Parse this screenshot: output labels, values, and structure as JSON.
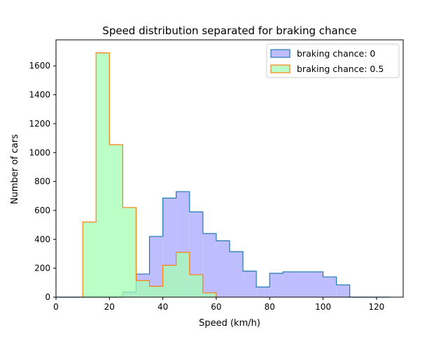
{
  "chart_data": {
    "type": "histogram",
    "title": "Speed distribution separated for braking chance",
    "xlabel": "Speed (km/h)",
    "ylabel": "Number of cars",
    "xlim": [
      0,
      130
    ],
    "ylim": [
      0,
      1780
    ],
    "x_ticks": [
      0,
      20,
      40,
      60,
      80,
      100,
      120
    ],
    "y_ticks": [
      0,
      200,
      400,
      600,
      800,
      1000,
      1200,
      1400,
      1600
    ],
    "legend_position": "top-right",
    "grid": false,
    "series": [
      {
        "name": "braking chance: 0",
        "fill_color": "#b3b3ff",
        "fill_opacity": 0.85,
        "edge_color": "#1f77b4",
        "bins": [
          {
            "x0": 0,
            "x1": 5,
            "value": 0
          },
          {
            "x0": 5,
            "x1": 10,
            "value": 0
          },
          {
            "x0": 10,
            "x1": 15,
            "value": 0
          },
          {
            "x0": 15,
            "x1": 20,
            "value": 0
          },
          {
            "x0": 20,
            "x1": 25,
            "value": 0
          },
          {
            "x0": 25,
            "x1": 30,
            "value": 35
          },
          {
            "x0": 30,
            "x1": 35,
            "value": 160
          },
          {
            "x0": 35,
            "x1": 40,
            "value": 420
          },
          {
            "x0": 40,
            "x1": 45,
            "value": 685
          },
          {
            "x0": 45,
            "x1": 50,
            "value": 730
          },
          {
            "x0": 50,
            "x1": 55,
            "value": 590
          },
          {
            "x0": 55,
            "x1": 60,
            "value": 440
          },
          {
            "x0": 60,
            "x1": 65,
            "value": 390
          },
          {
            "x0": 65,
            "x1": 70,
            "value": 315
          },
          {
            "x0": 70,
            "x1": 75,
            "value": 180
          },
          {
            "x0": 75,
            "x1": 80,
            "value": 70
          },
          {
            "x0": 80,
            "x1": 85,
            "value": 165
          },
          {
            "x0": 85,
            "x1": 90,
            "value": 175
          },
          {
            "x0": 90,
            "x1": 95,
            "value": 175
          },
          {
            "x0": 95,
            "x1": 100,
            "value": 175
          },
          {
            "x0": 100,
            "x1": 105,
            "value": 140
          },
          {
            "x0": 105,
            "x1": 110,
            "value": 85
          },
          {
            "x0": 110,
            "x1": 115,
            "value": 0
          },
          {
            "x0": 115,
            "x1": 120,
            "value": 0
          },
          {
            "x0": 120,
            "x1": 125,
            "value": 0
          }
        ]
      },
      {
        "name": "braking chance: 0.5",
        "fill_color": "#a6ffb3",
        "fill_opacity": 0.75,
        "edge_color": "#ff7f0e",
        "bins": [
          {
            "x0": 10,
            "x1": 15,
            "value": 520
          },
          {
            "x0": 15,
            "x1": 20,
            "value": 1690
          },
          {
            "x0": 20,
            "x1": 25,
            "value": 1055
          },
          {
            "x0": 25,
            "x1": 30,
            "value": 620
          },
          {
            "x0": 30,
            "x1": 35,
            "value": 115
          },
          {
            "x0": 35,
            "x1": 40,
            "value": 75
          },
          {
            "x0": 40,
            "x1": 45,
            "value": 220
          },
          {
            "x0": 45,
            "x1": 50,
            "value": 310
          },
          {
            "x0": 50,
            "x1": 55,
            "value": 155
          },
          {
            "x0": 55,
            "x1": 60,
            "value": 30
          }
        ]
      }
    ]
  }
}
